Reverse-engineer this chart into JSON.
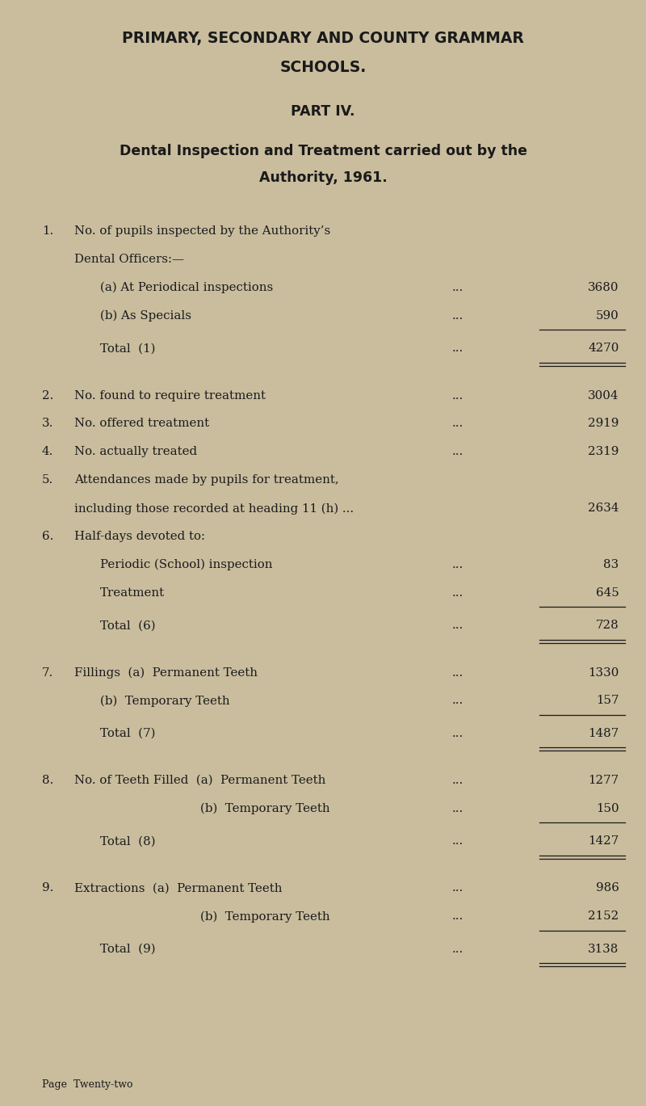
{
  "bg_color": "#c9bd9e",
  "text_color": "#1a1a1a",
  "title1": "PRIMARY, SECONDARY AND COUNTY GRAMMAR",
  "title2": "SCHOOLS.",
  "part": "PART IV.",
  "subtitle1": "Dental Inspection and Treatment carried out by the",
  "subtitle2": "Authority, 1961.",
  "lines": [
    {
      "num": "1.",
      "indent": 0,
      "text": "No. of pupils inspected by the Authority’s",
      "value": null,
      "dots": false,
      "underline_val": false,
      "extra_before": false
    },
    {
      "num": "",
      "indent": 0,
      "text": "Dental Officers:—",
      "value": null,
      "dots": false,
      "underline_val": false,
      "extra_before": false
    },
    {
      "num": "",
      "indent": 1,
      "text": "(a) At Periodical inspections",
      "value": "3680",
      "dots": true,
      "underline_val": false,
      "extra_before": false
    },
    {
      "num": "",
      "indent": 1,
      "text": "(b) As Specials",
      "value": "590",
      "dots": true,
      "underline_val": true,
      "is_subtotal": false,
      "extra_before": false
    },
    {
      "num": "",
      "indent": 1,
      "text": "Total  (1)",
      "value": "4270",
      "dots": true,
      "underline_val": true,
      "is_total": true,
      "extra_before": false
    },
    {
      "num": "2.",
      "indent": 0,
      "text": "No. found to require treatment",
      "value": "3004",
      "dots": true,
      "underline_val": false,
      "extra_before": true
    },
    {
      "num": "3.",
      "indent": 0,
      "text": "No. offered treatment",
      "value": "2919",
      "dots": true,
      "underline_val": false,
      "extra_before": false
    },
    {
      "num": "4.",
      "indent": 0,
      "text": "No. actually treated",
      "value": "2319",
      "dots": true,
      "underline_val": false,
      "extra_before": false
    },
    {
      "num": "5.",
      "indent": 0,
      "text": "Attendances made by pupils for treatment,",
      "value": null,
      "dots": false,
      "underline_val": false,
      "extra_before": false
    },
    {
      "num": "",
      "indent": 0,
      "text": "including those recorded at heading 11 (h) ...",
      "value": "2634",
      "dots": false,
      "underline_val": false,
      "extra_before": false
    },
    {
      "num": "6.",
      "indent": 0,
      "text": "Half-days devoted to:",
      "value": null,
      "dots": false,
      "underline_val": false,
      "extra_before": false
    },
    {
      "num": "",
      "indent": 1,
      "text": "Periodic (School) inspection",
      "value": "83",
      "dots": true,
      "underline_val": false,
      "extra_before": false
    },
    {
      "num": "",
      "indent": 1,
      "text": "Treatment",
      "value": "645",
      "dots": true,
      "underline_val": true,
      "is_total": false,
      "extra_before": false
    },
    {
      "num": "",
      "indent": 1,
      "text": "Total  (6)",
      "value": "728",
      "dots": true,
      "underline_val": true,
      "is_total": true,
      "extra_before": false
    },
    {
      "num": "7.",
      "indent": 0,
      "text": "Fillings  (a)  Permanent Teeth",
      "value": "1330",
      "dots": true,
      "underline_val": false,
      "extra_before": true
    },
    {
      "num": "",
      "indent": 1,
      "text": "(b)  Temporary Teeth",
      "value": "157",
      "dots": true,
      "underline_val": true,
      "is_total": false,
      "extra_before": false
    },
    {
      "num": "",
      "indent": 1,
      "text": "Total  (7)",
      "value": "1487",
      "dots": true,
      "underline_val": true,
      "is_total": true,
      "extra_before": false
    },
    {
      "num": "8.",
      "indent": 0,
      "text": "No. of Teeth Filled  (a)  Permanent Teeth",
      "value": "1277",
      "dots": true,
      "underline_val": false,
      "extra_before": true
    },
    {
      "num": "",
      "indent": 2,
      "text": "(b)  Temporary Teeth",
      "value": "150",
      "dots": true,
      "underline_val": true,
      "is_total": false,
      "extra_before": false
    },
    {
      "num": "",
      "indent": 1,
      "text": "Total  (8)",
      "value": "1427",
      "dots": true,
      "underline_val": true,
      "is_total": true,
      "extra_before": false
    },
    {
      "num": "9.",
      "indent": 0,
      "text": "Extractions  (a)  Permanent Teeth",
      "value": "986",
      "dots": true,
      "underline_val": false,
      "extra_before": true
    },
    {
      "num": "",
      "indent": 2,
      "text": "(b)  Temporary Teeth",
      "value": "2152",
      "dots": true,
      "underline_val": true,
      "is_total": false,
      "extra_before": false
    },
    {
      "num": "",
      "indent": 1,
      "text": "Total  (9)",
      "value": "3138",
      "dots": true,
      "underline_val": true,
      "is_total": true,
      "extra_before": false
    }
  ],
  "footer": "Page  Twenty-two",
  "figwidth": 8.0,
  "figheight": 13.69
}
